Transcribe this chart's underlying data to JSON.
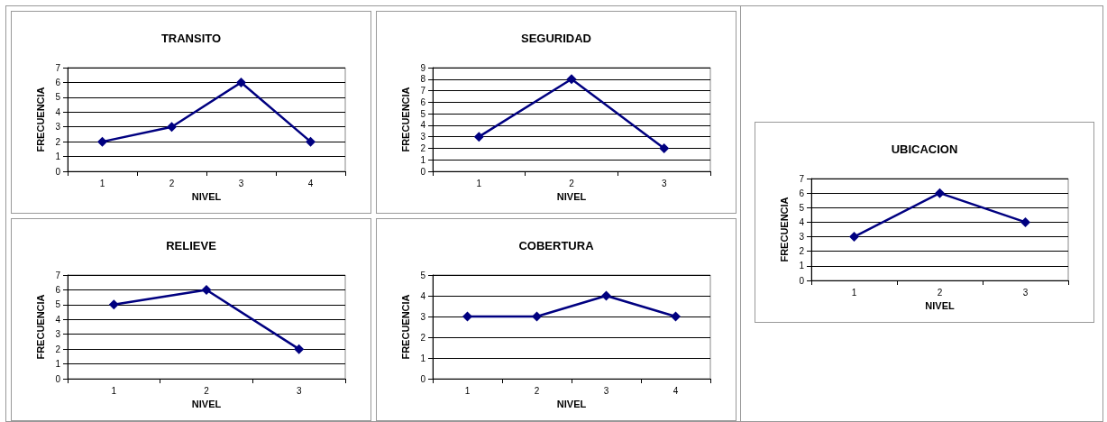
{
  "chart_data": [
    {
      "type": "line",
      "title": "TRANSITO",
      "xlabel": "NIVEL",
      "ylabel": "FRECUENCIA",
      "categories": [
        "1",
        "2",
        "3",
        "4"
      ],
      "values": [
        2,
        3,
        6,
        2
      ],
      "color": "#000080",
      "ylim": [
        0,
        7
      ],
      "yticks": [
        0,
        1,
        2,
        3,
        4,
        5,
        6,
        7
      ],
      "grid": "y",
      "marker": "diamond"
    },
    {
      "type": "line",
      "title": "SEGURIDAD",
      "xlabel": "NIVEL",
      "ylabel": "FRECUENCIA",
      "categories": [
        "1",
        "2",
        "3"
      ],
      "values": [
        3,
        8,
        2
      ],
      "color": "#000080",
      "ylim": [
        0,
        9
      ],
      "yticks": [
        0,
        1,
        2,
        3,
        4,
        5,
        6,
        7,
        8,
        9
      ],
      "grid": "y",
      "marker": "diamond"
    },
    {
      "type": "line",
      "title": "UBICACION",
      "xlabel": "NIVEL",
      "ylabel": "FRECUENCIA",
      "categories": [
        "1",
        "2",
        "3"
      ],
      "values": [
        3,
        6,
        4
      ],
      "color": "#000080",
      "ylim": [
        0,
        7
      ],
      "yticks": [
        0,
        1,
        2,
        3,
        4,
        5,
        6,
        7
      ],
      "grid": "y",
      "marker": "diamond"
    },
    {
      "type": "line",
      "title": "RELIEVE",
      "xlabel": "NIVEL",
      "ylabel": "FRECUENCIA",
      "categories": [
        "1",
        "2",
        "3"
      ],
      "values": [
        5,
        6,
        2
      ],
      "color": "#000080",
      "ylim": [
        0,
        7
      ],
      "yticks": [
        0,
        1,
        2,
        3,
        4,
        5,
        6,
        7
      ],
      "grid": "y",
      "marker": "diamond"
    },
    {
      "type": "line",
      "title": "COBERTURA",
      "xlabel": "NIVEL",
      "ylabel": "FRECUENCIA",
      "categories": [
        "1",
        "2",
        "3",
        "4"
      ],
      "values": [
        3,
        3,
        4,
        3
      ],
      "color": "#000080",
      "ylim": [
        0,
        5
      ],
      "yticks": [
        0,
        1,
        2,
        3,
        4,
        5
      ],
      "grid": "y",
      "marker": "diamond"
    }
  ]
}
